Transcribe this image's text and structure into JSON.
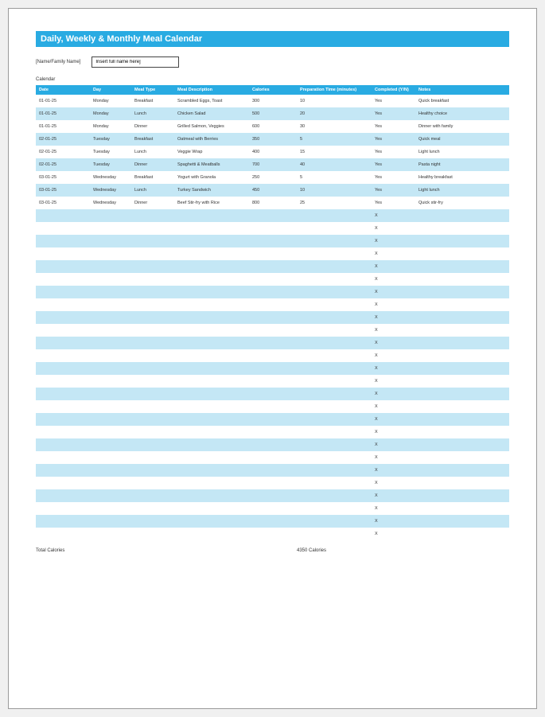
{
  "title": "Daily, Weekly & Monthly Meal Calendar",
  "name_label": "[Name/Family Name]",
  "name_placeholder": "Insert full name here]",
  "section_label": "Calendar",
  "header_bg": "#29abe2",
  "stripe_bg": "#c4e7f5",
  "columns": [
    "Date",
    "Day",
    "Meal Type",
    "Meal Description",
    "Calories",
    "Preparation Time (minutes)",
    "Completed (Y/N)",
    "Notes"
  ],
  "rows": [
    {
      "date": "01-01-25",
      "day": "Monday",
      "type": "Breakfast",
      "desc": "Scrambled Eggs, Toast",
      "cal": "300",
      "prep": "10",
      "comp": "Yes",
      "notes": "Quick breakfast"
    },
    {
      "date": "01-01-25",
      "day": "Monday",
      "type": "Lunch",
      "desc": "Chicken Salad",
      "cal": "500",
      "prep": "20",
      "comp": "Yes",
      "notes": "Healthy choice"
    },
    {
      "date": "01-01-25",
      "day": "Monday",
      "type": "Dinner",
      "desc": "Grilled Salmon, Veggies",
      "cal": "600",
      "prep": "30",
      "comp": "Yes",
      "notes": "Dinner with family"
    },
    {
      "date": "02-01-25",
      "day": "Tuesday",
      "type": "Breakfast",
      "desc": "Oatmeal with Berries",
      "cal": "350",
      "prep": "5",
      "comp": "Yes",
      "notes": "Quick meal"
    },
    {
      "date": "02-01-25",
      "day": "Tuesday",
      "type": "Lunch",
      "desc": "Veggie Wrap",
      "cal": "400",
      "prep": "15",
      "comp": "Yes",
      "notes": "Light lunch"
    },
    {
      "date": "02-01-25",
      "day": "Tuesday",
      "type": "Dinner",
      "desc": "Spaghetti & Meatballs",
      "cal": "700",
      "prep": "40",
      "comp": "Yes",
      "notes": "Pasta night"
    },
    {
      "date": "03-01-25",
      "day": "Wednesday",
      "type": "Breakfast",
      "desc": "Yogurt with Granola",
      "cal": "250",
      "prep": "5",
      "comp": "Yes",
      "notes": "Healthy breakfast"
    },
    {
      "date": "03-01-25",
      "day": "Wednesday",
      "type": "Lunch",
      "desc": "Turkey Sandwich",
      "cal": "450",
      "prep": "10",
      "comp": "Yes",
      "notes": "Light lunch"
    },
    {
      "date": "03-01-25",
      "day": "Wednesday",
      "type": "Dinner",
      "desc": "Beef Stir-fry with Rice",
      "cal": "800",
      "prep": "25",
      "comp": "Yes",
      "notes": "Quick stir-fry"
    }
  ],
  "empty_row_count": 26,
  "empty_marker": "X",
  "footer_label": "Total Calories",
  "footer_value": "4350 Calories"
}
